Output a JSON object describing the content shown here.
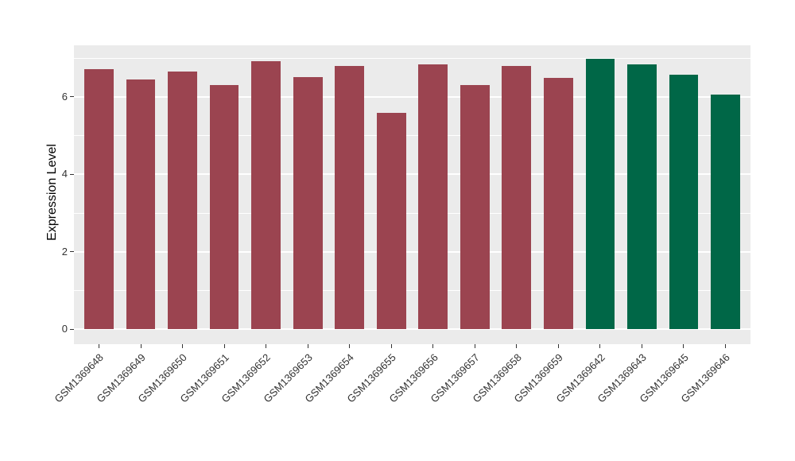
{
  "chart_data": {
    "type": "bar",
    "title": "",
    "xlabel": "",
    "ylabel": "Expression Level",
    "yticks": [
      0,
      2,
      4,
      6
    ],
    "minor_yticks": [
      1,
      3,
      5,
      7
    ],
    "ylim": [
      -0.38,
      7.33
    ],
    "grid": true,
    "legend_position": "none",
    "panel_background": "#EBEBEB",
    "gridline_color": "#FFFFFF",
    "group_colors": {
      "maroon_group": "#9B4450",
      "green_group": "#006747"
    },
    "categories": [
      "GSM1369648",
      "GSM1369649",
      "GSM1369650",
      "GSM1369651",
      "GSM1369652",
      "GSM1369653",
      "GSM1369654",
      "GSM1369655",
      "GSM1369656",
      "GSM1369657",
      "GSM1369658",
      "GSM1369659",
      "GSM1369642",
      "GSM1369643",
      "GSM1369645",
      "GSM1369646"
    ],
    "values": [
      6.71,
      6.45,
      6.66,
      6.3,
      6.93,
      6.52,
      6.79,
      5.59,
      6.84,
      6.31,
      6.79,
      6.48,
      6.98,
      6.84,
      6.58,
      6.06
    ],
    "bars": [
      {
        "label": "GSM1369648",
        "value": 6.71,
        "color": "#9B4450"
      },
      {
        "label": "GSM1369649",
        "value": 6.45,
        "color": "#9B4450"
      },
      {
        "label": "GSM1369650",
        "value": 6.66,
        "color": "#9B4450"
      },
      {
        "label": "GSM1369651",
        "value": 6.3,
        "color": "#9B4450"
      },
      {
        "label": "GSM1369652",
        "value": 6.93,
        "color": "#9B4450"
      },
      {
        "label": "GSM1369653",
        "value": 6.52,
        "color": "#9B4450"
      },
      {
        "label": "GSM1369654",
        "value": 6.79,
        "color": "#9B4450"
      },
      {
        "label": "GSM1369655",
        "value": 5.59,
        "color": "#9B4450"
      },
      {
        "label": "GSM1369656",
        "value": 6.84,
        "color": "#9B4450"
      },
      {
        "label": "GSM1369657",
        "value": 6.31,
        "color": "#9B4450"
      },
      {
        "label": "GSM1369658",
        "value": 6.79,
        "color": "#9B4450"
      },
      {
        "label": "GSM1369659",
        "value": 6.48,
        "color": "#9B4450"
      },
      {
        "label": "GSM1369642",
        "value": 6.98,
        "color": "#006747"
      },
      {
        "label": "GSM1369643",
        "value": 6.84,
        "color": "#006747"
      },
      {
        "label": "GSM1369645",
        "value": 6.58,
        "color": "#006747"
      },
      {
        "label": "GSM1369646",
        "value": 6.06,
        "color": "#006747"
      }
    ]
  }
}
